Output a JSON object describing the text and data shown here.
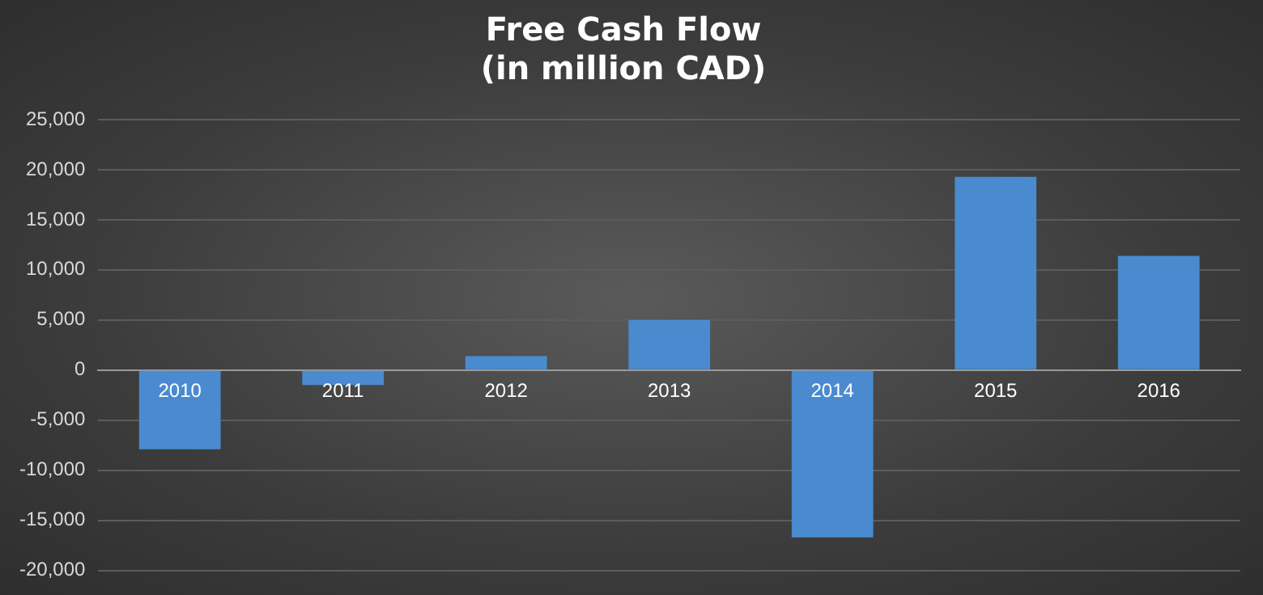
{
  "chart_data": {
    "type": "bar",
    "title": "Free Cash Flow\n(in million CAD)",
    "categories": [
      "2010",
      "2011",
      "2012",
      "2013",
      "2014",
      "2015",
      "2016"
    ],
    "values": [
      -7900,
      -1500,
      1400,
      5000,
      -16700,
      19300,
      11400
    ],
    "color": "#4a8bd0",
    "ylim": [
      -20000,
      25000
    ],
    "yticks": [
      {
        "value": -20000,
        "label": "-20,000"
      },
      {
        "value": -15000,
        "label": "-15,000"
      },
      {
        "value": -10000,
        "label": "-10,000"
      },
      {
        "value": -5000,
        "label": "-5,000"
      },
      0,
      {
        "value": 5000,
        "label": "5,000"
      },
      {
        "value": 10000,
        "label": "10,000"
      },
      {
        "value": 15000,
        "label": "15,000"
      },
      {
        "value": 20000,
        "label": "20,000"
      },
      {
        "value": 25000,
        "label": "25,000"
      }
    ],
    "grid": "y",
    "legend": false
  }
}
